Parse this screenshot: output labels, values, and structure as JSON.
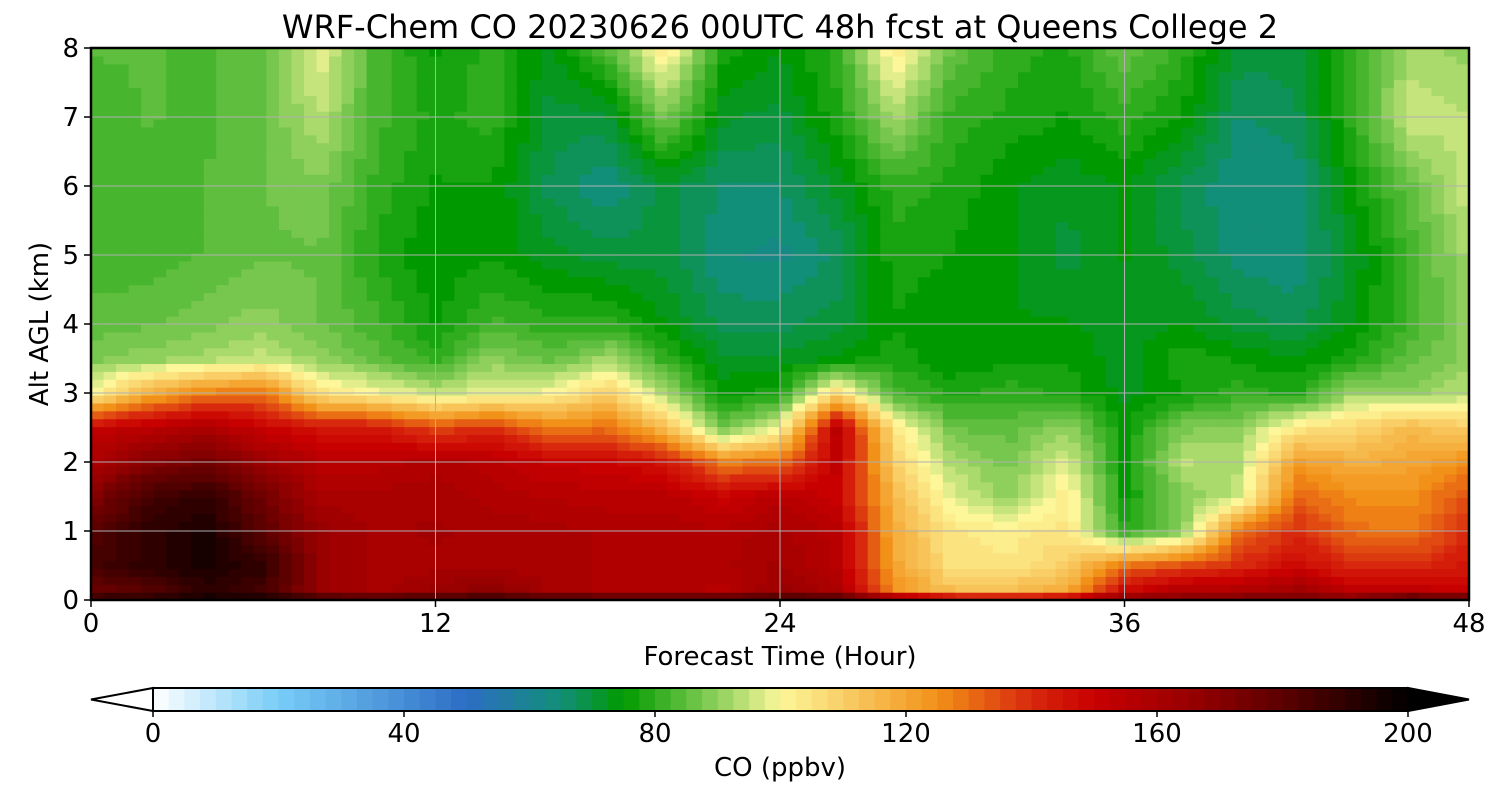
{
  "chart_data": {
    "type": "heatmap",
    "title": "WRF-Chem CO  20230626 00UTC 48h fcst at Queens College 2",
    "xlabel": "Forecast Time (Hour)",
    "ylabel": "Alt AGL (km)",
    "xlim": [
      0,
      48
    ],
    "ylim": [
      0,
      8
    ],
    "xticks": [
      0,
      12,
      24,
      36,
      48
    ],
    "yticks": [
      0,
      1,
      2,
      3,
      4,
      5,
      6,
      7,
      8
    ],
    "grid": true,
    "x": [
      0,
      2,
      4,
      6,
      8,
      10,
      12,
      14,
      16,
      18,
      20,
      22,
      24,
      26,
      28,
      30,
      32,
      34,
      36,
      38,
      40,
      42,
      44,
      46,
      48
    ],
    "y": [
      0,
      0.1,
      0.5,
      1,
      1.5,
      2,
      2.5,
      3,
      3.5,
      4,
      5,
      6,
      7,
      8
    ],
    "values": [
      [
        200,
        200,
        200,
        200,
        200,
        200,
        200,
        200,
        200,
        200,
        200,
        200,
        200,
        200,
        190,
        175,
        170,
        175,
        180,
        175,
        180,
        180,
        180,
        200,
        200
      ],
      [
        175,
        180,
        190,
        185,
        165,
        160,
        165,
        170,
        160,
        158,
        158,
        155,
        165,
        160,
        125,
        115,
        115,
        120,
        150,
        160,
        160,
        165,
        155,
        155,
        150
      ],
      [
        185,
        190,
        195,
        190,
        165,
        160,
        160,
        160,
        160,
        158,
        158,
        158,
        162,
        155,
        120,
        105,
        104,
        110,
        130,
        135,
        140,
        148,
        140,
        140,
        145
      ],
      [
        182,
        190,
        195,
        180,
        165,
        160,
        162,
        160,
        160,
        158,
        158,
        157,
        160,
        155,
        118,
        104,
        103,
        105,
        80,
        88,
        130,
        140,
        130,
        128,
        140
      ],
      [
        170,
        185,
        190,
        175,
        160,
        160,
        160,
        158,
        156,
        155,
        155,
        150,
        155,
        150,
        115,
        98,
        90,
        103,
        76,
        88,
        95,
        132,
        125,
        125,
        135
      ],
      [
        160,
        170,
        175,
        165,
        155,
        155,
        158,
        155,
        150,
        150,
        145,
        128,
        130,
        152,
        110,
        92,
        88,
        98,
        76,
        94,
        93,
        122,
        118,
        120,
        125
      ],
      [
        150,
        155,
        160,
        150,
        145,
        145,
        135,
        140,
        128,
        130,
        115,
        85,
        100,
        155,
        104,
        86,
        85,
        90,
        76,
        88,
        90,
        104,
        108,
        115,
        110
      ],
      [
        100,
        118,
        128,
        130,
        105,
        100,
        95,
        98,
        100,
        110,
        92,
        75,
        78,
        108,
        82,
        78,
        80,
        78,
        73,
        76,
        80,
        78,
        92,
        90,
        94
      ],
      [
        88,
        90,
        92,
        95,
        90,
        85,
        80,
        90,
        85,
        92,
        80,
        72,
        72,
        74,
        78,
        74,
        76,
        76,
        72,
        78,
        76,
        74,
        78,
        85,
        90
      ],
      [
        85,
        86,
        88,
        90,
        86,
        82,
        76,
        82,
        80,
        80,
        74,
        68,
        68,
        70,
        76,
        74,
        74,
        74,
        72,
        74,
        70,
        68,
        74,
        82,
        90
      ],
      [
        82,
        82,
        84,
        86,
        86,
        78,
        74,
        76,
        72,
        70,
        70,
        64,
        63,
        67,
        78,
        76,
        74,
        70,
        74,
        70,
        65,
        64,
        72,
        82,
        92
      ],
      [
        82,
        82,
        84,
        86,
        88,
        80,
        76,
        76,
        68,
        64,
        70,
        66,
        66,
        72,
        80,
        78,
        74,
        72,
        74,
        68,
        64,
        64,
        76,
        86,
        96
      ],
      [
        82,
        84,
        83,
        86,
        94,
        82,
        78,
        80,
        70,
        70,
        88,
        72,
        70,
        78,
        92,
        80,
        78,
        76,
        80,
        76,
        66,
        68,
        80,
        96,
        94
      ],
      [
        84,
        84,
        83,
        86,
        98,
        82,
        76,
        80,
        73,
        84,
        104,
        78,
        74,
        80,
        104,
        86,
        80,
        78,
        86,
        80,
        70,
        70,
        82,
        92,
        90
      ]
    ],
    "colorbar": {
      "label": "CO  (ppbv)",
      "min": 0,
      "max": 200,
      "ticks": [
        0,
        40,
        80,
        120,
        160,
        200
      ],
      "extend": "both",
      "stops": [
        {
          "value": 0,
          "color": "#ffffff"
        },
        {
          "value": 20,
          "color": "#78cdf8"
        },
        {
          "value": 50,
          "color": "#2c6dc4"
        },
        {
          "value": 65,
          "color": "#128f78"
        },
        {
          "value": 75,
          "color": "#009a00"
        },
        {
          "value": 90,
          "color": "#8fd05d"
        },
        {
          "value": 100,
          "color": "#fdf79a"
        },
        {
          "value": 125,
          "color": "#f29118"
        },
        {
          "value": 140,
          "color": "#d8280d"
        },
        {
          "value": 150,
          "color": "#c80000"
        },
        {
          "value": 165,
          "color": "#990000"
        },
        {
          "value": 180,
          "color": "#5c0000"
        },
        {
          "value": 200,
          "color": "#000000"
        }
      ]
    }
  }
}
